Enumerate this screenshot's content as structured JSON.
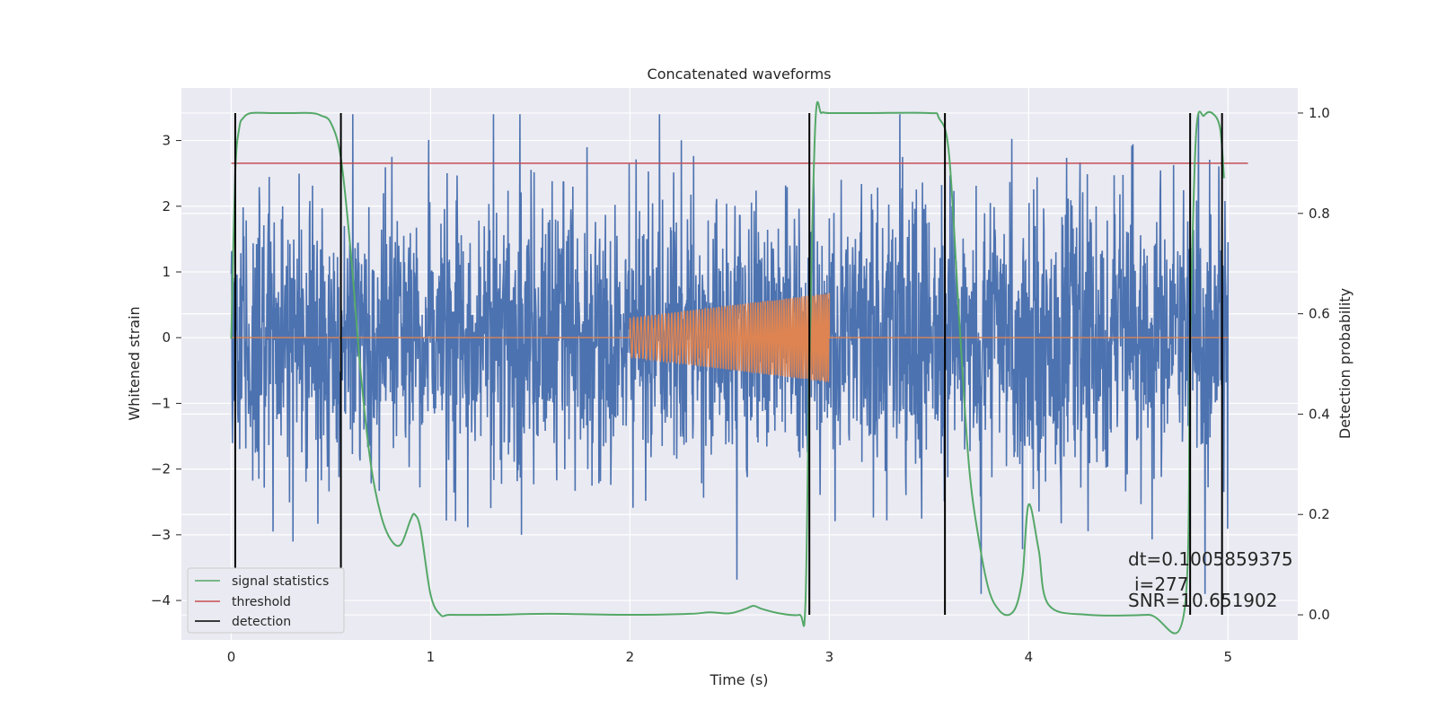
{
  "chart_data": {
    "type": "line",
    "title": "Concatenated waveforms",
    "xlabel": "Time (s)",
    "ylabel": "Whitened strain",
    "ylabel_right": "Detection probability",
    "xlim": [
      -0.25,
      5.35
    ],
    "ylim": [
      -4.6,
      3.8
    ],
    "ylim_right": [
      -0.05,
      1.05
    ],
    "xticks": [
      0,
      1,
      2,
      3,
      4,
      5
    ],
    "yticks": [
      -4,
      -3,
      -2,
      -1,
      0,
      1,
      2,
      3
    ],
    "yticks_right": [
      0.0,
      0.2,
      0.4,
      0.6,
      0.8,
      1.0
    ],
    "grid": true,
    "legend_position": "lower-left",
    "legend": [
      {
        "label": "signal statistics",
        "color": "#55a868"
      },
      {
        "label": "threshold",
        "color": "#c44e52"
      },
      {
        "label": "detection",
        "color": "#000000"
      }
    ],
    "colors": {
      "strain": "#4c72b0",
      "template": "#dd8452",
      "signal": "#55a868",
      "threshold": "#c44e52",
      "detection": "#000000",
      "plot_bg": "#eaeaf2",
      "grid": "#ffffff"
    },
    "strain": {
      "x_range": [
        0,
        5
      ],
      "typical_amplitude": 1.7,
      "peak_max": 3.4,
      "peak_min": -3.9
    },
    "template": {
      "x_range": [
        2.0,
        3.0
      ],
      "start_amplitude": 0.3,
      "end_amplitude": 0.68,
      "cycles": 75
    },
    "threshold": {
      "x": [
        0,
        5.1
      ],
      "y": 0.9
    },
    "detections": [
      0.02,
      0.55,
      2.9,
      3.58,
      4.81,
      4.97
    ],
    "detection_range_right": [
      0.0,
      1.0
    ],
    "signal_statistics": {
      "x": [
        0,
        0.02,
        0.04,
        0.06,
        0.1,
        0.2,
        0.3,
        0.4,
        0.45,
        0.5,
        0.55,
        0.6,
        0.65,
        0.7,
        0.75,
        0.8,
        0.85,
        0.9,
        0.92,
        0.95,
        1.0,
        1.05,
        1.1,
        1.3,
        1.6,
        2.0,
        2.3,
        2.4,
        2.5,
        2.58,
        2.62,
        2.66,
        2.75,
        2.85,
        2.88,
        2.9,
        2.93,
        2.96,
        3.0,
        3.2,
        3.5,
        3.55,
        3.6,
        3.65,
        3.7,
        3.75,
        3.8,
        3.85,
        3.9,
        3.94,
        3.97,
        4.0,
        4.05,
        4.1,
        4.3,
        4.6,
        4.78,
        4.81,
        4.84,
        4.88,
        4.92,
        4.96,
        4.98
      ],
      "y": [
        0.55,
        0.88,
        0.97,
        0.99,
        1.0,
        1.0,
        1.0,
        1.0,
        0.995,
        0.98,
        0.91,
        0.72,
        0.48,
        0.3,
        0.2,
        0.15,
        0.14,
        0.19,
        0.2,
        0.17,
        0.04,
        0.0,
        0.0,
        0.0,
        0.002,
        0.0,
        0.002,
        0.005,
        0.003,
        0.012,
        0.018,
        0.012,
        0.003,
        0.0,
        0.02,
        0.5,
        0.98,
        1.0,
        1.0,
        1.0,
        1.0,
        0.99,
        0.92,
        0.6,
        0.3,
        0.15,
        0.05,
        0.01,
        0.0,
        0.02,
        0.08,
        0.22,
        0.13,
        0.02,
        0.0,
        0.0,
        0.005,
        0.55,
        0.96,
        0.995,
        1.0,
        0.97,
        0.87
      ]
    },
    "annotations": {
      "dt": "dt=0.1005859375",
      "i": "i=277",
      "snr": "SNR=10.651902"
    }
  }
}
